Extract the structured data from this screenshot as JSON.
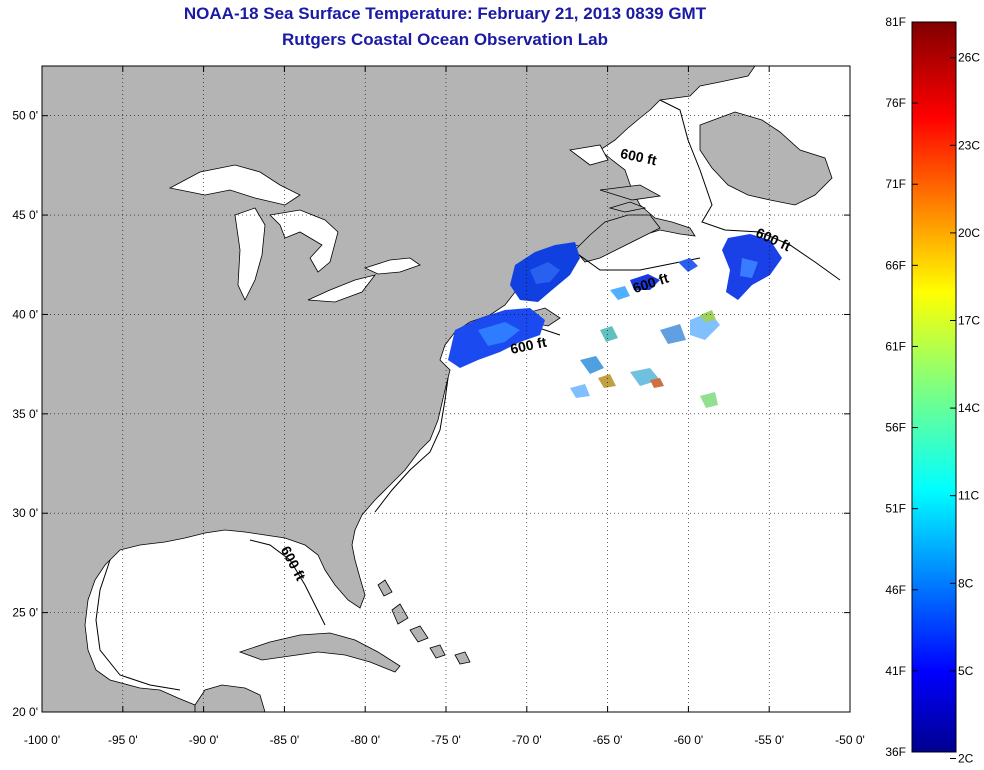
{
  "header": {
    "title": "NOAA-18 Sea Surface Temperature:  February 21, 2013 0839 GMT",
    "subtitle": "Rutgers Coastal Ocean Observation Lab"
  },
  "map": {
    "lon_range": [
      -100,
      -50
    ],
    "lat_range": [
      20,
      52.5
    ],
    "lon_ticks": [
      "-100 0'",
      "-95 0'",
      "-90 0'",
      "-85 0'",
      "-80 0'",
      "-75 0'",
      "-70 0'",
      "-65 0'",
      "-60 0'",
      "-55 0'",
      "-50 0'"
    ],
    "lat_ticks": [
      "20 0'",
      "25 0'",
      "30 0'",
      "35 0'",
      "40 0'",
      "45 0'",
      "50 0'"
    ],
    "grid": "dotted",
    "land_color": "#b4b4b4",
    "contour_label": "600 ft"
  },
  "colorbar": {
    "f_labels": [
      "81F",
      "76F",
      "71F",
      "66F",
      "61F",
      "56F",
      "51F",
      "46F",
      "41F",
      "36F"
    ],
    "c_labels": [
      "26C",
      "23C",
      "20C",
      "17C",
      "14C",
      "11C",
      "8C",
      "5C",
      "2C"
    ],
    "colormap": "jet"
  }
}
